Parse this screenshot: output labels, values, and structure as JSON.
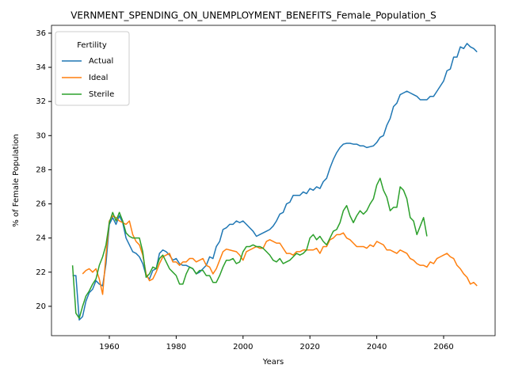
{
  "chart_data": {
    "type": "line",
    "title": "VERNMENT_SPENDING_ON_UNEMPLOYMENT_BENEFITS_Female_Population_S",
    "x_label": "Years",
    "y_label": "% of Female Population",
    "legend_title": "Fertility",
    "legend": "upper left",
    "x": [
      1949,
      1950,
      1951,
      1952,
      1953,
      1954,
      1955,
      1956,
      1957,
      1958,
      1959,
      1960,
      1961,
      1962,
      1963,
      1964,
      1965,
      1966,
      1967,
      1968,
      1969,
      1970,
      1971,
      1972,
      1973,
      1974,
      1975,
      1976,
      1977,
      1978,
      1979,
      1980,
      1981,
      1982,
      1983,
      1984,
      1985,
      1986,
      1987,
      1988,
      1989,
      1990,
      1991,
      1992,
      1993,
      1994,
      1995,
      1996,
      1997,
      1998,
      1999,
      2000,
      2001,
      2002,
      2003,
      2004,
      2005,
      2006,
      2007,
      2008,
      2009,
      2010,
      2011,
      2012,
      2013,
      2014,
      2015,
      2016,
      2017,
      2018,
      2019,
      2020,
      2021,
      2022,
      2023,
      2024,
      2025,
      2026,
      2027,
      2028,
      2029,
      2030,
      2031,
      2032,
      2033,
      2034,
      2035,
      2036,
      2037,
      2038,
      2039,
      2040,
      2041,
      2042,
      2043,
      2044,
      2045,
      2046,
      2047,
      2048,
      2049,
      2050,
      2051,
      2052,
      2053,
      2054,
      2055,
      2056,
      2057,
      2058,
      2059,
      2060,
      2061,
      2062,
      2063,
      2064,
      2065,
      2066,
      2067,
      2068,
      2069,
      2070
    ],
    "series": [
      {
        "name": "Actual",
        "color": "#1f77b4",
        "values": [
          21.8,
          21.8,
          19.2,
          19.4,
          20.3,
          20.8,
          21.0,
          21.5,
          21.3,
          21.2,
          22.5,
          24.8,
          25.2,
          24.8,
          25.3,
          24.9,
          24.0,
          23.6,
          23.2,
          23.1,
          22.9,
          22.5,
          21.8,
          21.6,
          22.1,
          22.2,
          23.1,
          23.3,
          23.2,
          23.0,
          22.7,
          22.8,
          22.5,
          22.4,
          22.4,
          22.3,
          22.2,
          21.9,
          22.0,
          22.2,
          22.4,
          22.9,
          22.8,
          23.5,
          23.8,
          24.5,
          24.6,
          24.8,
          24.8,
          25.0,
          24.9,
          25.0,
          24.8,
          24.6,
          24.4,
          24.1,
          24.2,
          24.3,
          24.4,
          24.5,
          24.7,
          25.0,
          25.4,
          25.5,
          26.0,
          26.1,
          26.5,
          26.5,
          26.5,
          26.7,
          26.6,
          26.9,
          26.8,
          27.0,
          26.9,
          27.3,
          27.5,
          28.1,
          28.6,
          29.0,
          29.3,
          29.5,
          29.55,
          29.55,
          29.5,
          29.5,
          29.4,
          29.4,
          29.3,
          29.35,
          29.4,
          29.6,
          29.9,
          30.0,
          30.6,
          31.0,
          31.7,
          31.9,
          32.4,
          32.5,
          32.6,
          32.5,
          32.4,
          32.3,
          32.1,
          32.1,
          32.1,
          32.3,
          32.3,
          32.6,
          32.9,
          33.2,
          33.8,
          33.9,
          34.6,
          34.6,
          35.2,
          35.1,
          35.4,
          35.2,
          35.1,
          34.9
        ]
      },
      {
        "name": "Ideal",
        "color": "#ff7f0e",
        "values": [
          null,
          null,
          null,
          21.9,
          22.1,
          22.2,
          22.0,
          22.2,
          21.6,
          20.7,
          23.0,
          25.0,
          25.3,
          25.2,
          25.0,
          24.9,
          24.8,
          25.0,
          24.2,
          23.8,
          23.6,
          23.0,
          21.9,
          21.5,
          21.6,
          22.0,
          22.5,
          22.9,
          23.0,
          23.1,
          22.6,
          22.6,
          22.4,
          22.6,
          22.6,
          22.8,
          22.8,
          22.6,
          22.7,
          22.8,
          22.4,
          22.3,
          21.9,
          22.2,
          22.7,
          23.2,
          23.35,
          23.3,
          23.25,
          23.2,
          23.0,
          22.7,
          23.2,
          23.3,
          23.4,
          23.5,
          23.4,
          23.4,
          23.8,
          23.9,
          23.8,
          23.7,
          23.7,
          23.4,
          23.1,
          23.1,
          23.0,
          23.2,
          23.2,
          23.3,
          23.3,
          23.3,
          23.3,
          23.4,
          23.1,
          23.5,
          23.5,
          23.9,
          24.0,
          24.2,
          24.2,
          24.3,
          24.0,
          23.9,
          23.7,
          23.5,
          23.5,
          23.5,
          23.4,
          23.6,
          23.5,
          23.8,
          23.7,
          23.6,
          23.3,
          23.3,
          23.2,
          23.1,
          23.3,
          23.2,
          23.1,
          22.8,
          22.7,
          22.5,
          22.4,
          22.4,
          22.3,
          22.6,
          22.5,
          22.8,
          22.9,
          23.0,
          23.1,
          22.9,
          22.8,
          22.4,
          22.2,
          21.9,
          21.7,
          21.3,
          21.4,
          21.2
        ]
      },
      {
        "name": "Sterile",
        "color": "#2ca02c",
        "values": [
          22.4,
          19.6,
          19.3,
          20.0,
          20.6,
          20.9,
          21.3,
          21.6,
          22.4,
          22.9,
          23.6,
          24.9,
          25.5,
          25.0,
          25.5,
          25.0,
          24.3,
          24.1,
          24.0,
          24.0,
          24.0,
          23.2,
          21.7,
          21.9,
          22.3,
          22.2,
          22.8,
          23.0,
          22.6,
          22.2,
          22.0,
          21.8,
          21.3,
          21.3,
          21.9,
          22.3,
          22.2,
          21.9,
          22.1,
          22.1,
          21.8,
          21.8,
          21.4,
          21.4,
          21.8,
          22.3,
          22.7,
          22.7,
          22.8,
          22.5,
          22.6,
          23.2,
          23.5,
          23.5,
          23.6,
          23.5,
          23.5,
          23.4,
          23.2,
          23.0,
          22.7,
          22.6,
          22.8,
          22.5,
          22.6,
          22.7,
          22.9,
          23.1,
          23.0,
          23.1,
          23.3,
          24.0,
          24.2,
          23.9,
          24.1,
          23.8,
          23.6,
          24.0,
          24.4,
          24.5,
          24.9,
          25.6,
          25.9,
          25.3,
          24.9,
          25.3,
          25.6,
          25.4,
          25.6,
          26.0,
          26.3,
          27.1,
          27.5,
          26.8,
          26.4,
          25.6,
          25.8,
          25.8,
          27.0,
          26.8,
          26.3,
          25.2,
          25.0,
          24.2,
          24.7,
          25.2,
          24.1,
          null,
          null,
          null,
          null,
          null,
          null,
          null,
          null,
          null,
          null,
          null,
          null,
          null,
          null,
          null
        ]
      }
    ],
    "xlim": [
      1942.7,
      2075.4
    ],
    "ylim": [
      18.28,
      36.46
    ],
    "xticks": [
      1960,
      1980,
      2000,
      2020,
      2040,
      2060
    ],
    "yticks": [
      20,
      22,
      24,
      26,
      28,
      30,
      32,
      34,
      36
    ]
  }
}
